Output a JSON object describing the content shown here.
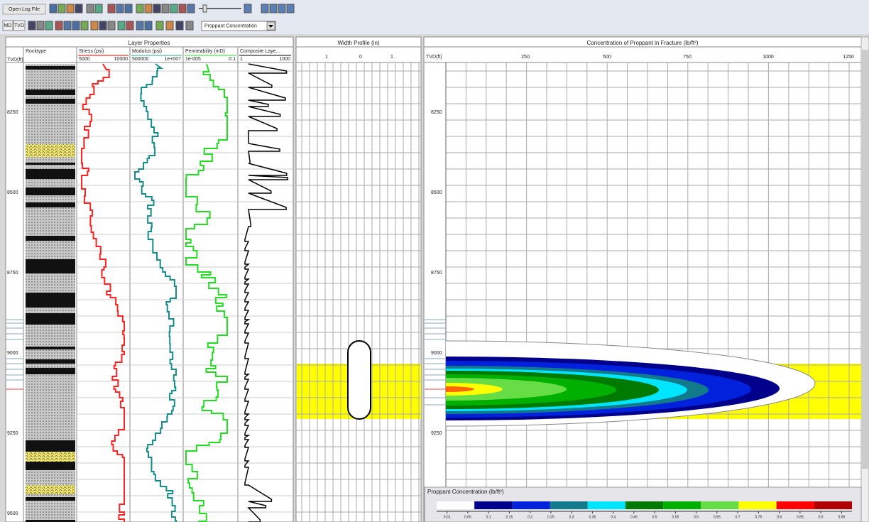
{
  "toolbar": {
    "open_log_file": "Open Log File",
    "md": "MD",
    "tvd": "TVD",
    "view_select": "Proppant Concentration"
  },
  "layer_properties": {
    "title": "Layer Properties",
    "depth_header": "TVD(ft)",
    "columns": [
      {
        "name": "Rocktype"
      },
      {
        "name": "Stress (psi)",
        "min": "5000",
        "max": "10000"
      },
      {
        "name": "Modulus (psi)",
        "min": "500000",
        "max": "1e+007"
      },
      {
        "name": "Permeability (mD)",
        "min": "1e-005",
        "max": "0.1"
      },
      {
        "name": "Composite Laye...",
        "min": "1",
        "max": "1000"
      }
    ],
    "depths": [
      "8250",
      "8500",
      "8750",
      "9000",
      "9250",
      "9500"
    ]
  },
  "width_profile": {
    "title": "Width Profile (in)",
    "ticks": [
      "1",
      "0",
      "1"
    ]
  },
  "concentration_plot": {
    "title": "Concentration of Proppant in Fracture (lb/ft²)",
    "depth_header": "TVD(ft)",
    "x_ticks": [
      "250",
      "500",
      "750",
      "1000",
      "1250"
    ],
    "depths": [
      "8250",
      "8500",
      "8750",
      "9000",
      "9250"
    ]
  },
  "legend": {
    "title": "Proppant Concentration (lb/ft²)",
    "labels": [
      "0.01",
      "0.05",
      "0.1",
      "0.15",
      "0.2",
      "0.25",
      "0.3",
      "0.35",
      "0.4",
      "0.45",
      "0.5",
      "0.55",
      "0.6",
      "0.65",
      "0.7",
      "0.75",
      "0.8",
      "0.85",
      "0.9",
      "0.95"
    ]
  }
}
